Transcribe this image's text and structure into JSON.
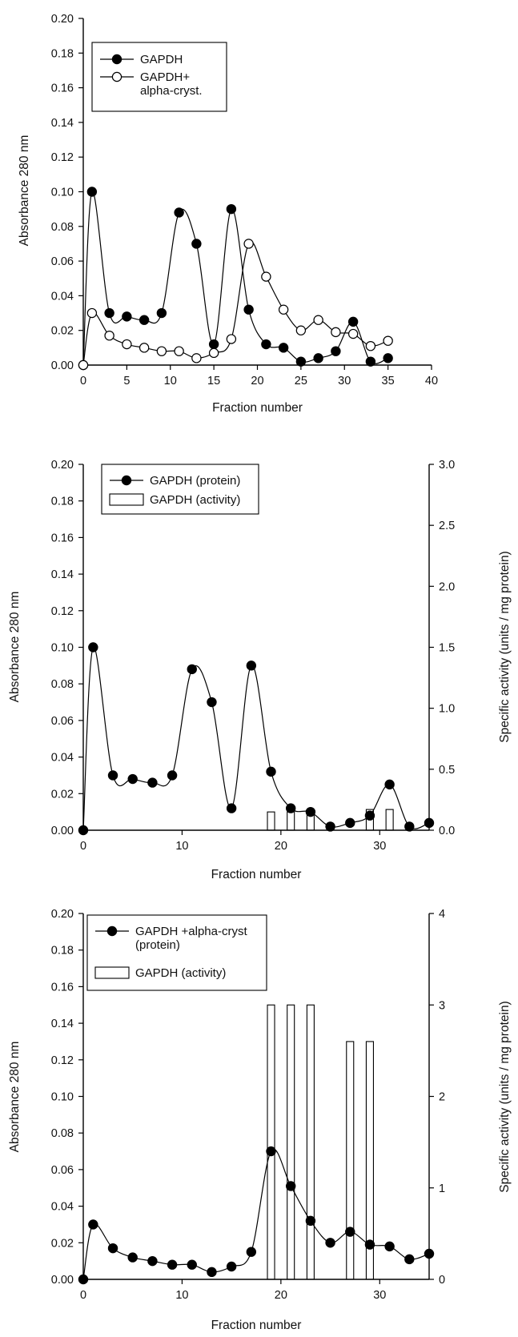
{
  "chart_data": [
    {
      "type": "line",
      "xlabel": "Fraction number",
      "ylabel": "Absorbance 280 nm",
      "xlim": [
        0,
        40
      ],
      "ylim": [
        0,
        0.2
      ],
      "x_ticks": [
        "0",
        "5",
        "10",
        "15",
        "20",
        "25",
        "30",
        "35",
        "40"
      ],
      "y_ticks": [
        "0.00",
        "0.02",
        "0.04",
        "0.06",
        "0.08",
        "0.10",
        "0.12",
        "0.14",
        "0.16",
        "0.18",
        "0.20"
      ],
      "grid": false,
      "legend_position": "top-left",
      "legend": [
        {
          "lines": [
            "GAPDH"
          ],
          "marker": "filled"
        },
        {
          "lines": [
            "GAPDH+",
            "alpha-cryst."
          ],
          "marker": "open"
        }
      ],
      "series": [
        {
          "name": "GAPDH",
          "marker": "filled",
          "x": [
            0,
            1,
            3,
            5,
            7,
            9,
            11,
            13,
            15,
            17,
            19,
            21,
            23,
            25,
            27,
            29,
            31,
            33,
            35
          ],
          "y": [
            0.0,
            0.1,
            0.03,
            0.028,
            0.026,
            0.03,
            0.088,
            0.07,
            0.012,
            0.09,
            0.032,
            0.012,
            0.01,
            0.002,
            0.004,
            0.008,
            0.025,
            0.002,
            0.004
          ]
        },
        {
          "name": "GAPDH+ alpha-cryst.",
          "marker": "open",
          "x": [
            0,
            1,
            3,
            5,
            7,
            9,
            11,
            13,
            15,
            17,
            19,
            21,
            23,
            25,
            27,
            29,
            31,
            33,
            35
          ],
          "y": [
            0.0,
            0.03,
            0.017,
            0.012,
            0.01,
            0.008,
            0.008,
            0.004,
            0.007,
            0.015,
            0.07,
            0.051,
            0.032,
            0.02,
            0.026,
            0.019,
            0.018,
            0.011,
            0.014
          ]
        }
      ]
    },
    {
      "type": "line",
      "xlabel": "Fraction number",
      "ylabel": "Absorbance 280 nm",
      "y2label": "Specific activity (units / mg protein)",
      "xlim": [
        0,
        35
      ],
      "ylim": [
        0,
        0.2
      ],
      "y2lim": [
        0,
        3.0
      ],
      "x_ticks": [
        "0",
        "10",
        "20",
        "30"
      ],
      "y_ticks": [
        "0.00",
        "0.02",
        "0.04",
        "0.06",
        "0.08",
        "0.10",
        "0.12",
        "0.14",
        "0.16",
        "0.18",
        "0.20"
      ],
      "y2_ticks": [
        "0.0",
        "0.5",
        "1.0",
        "1.5",
        "2.0",
        "2.5",
        "3.0"
      ],
      "grid": false,
      "legend_position": "top-left",
      "legend": [
        {
          "lines": [
            "GAPDH (protein)"
          ],
          "marker": "filled"
        },
        {
          "lines": [
            "GAPDH (activity)"
          ],
          "marker": "bar"
        }
      ],
      "series": [
        {
          "name": "GAPDH (protein)",
          "marker": "filled",
          "x": [
            0,
            1,
            3,
            5,
            7,
            9,
            11,
            13,
            15,
            17,
            19,
            21,
            23,
            25,
            27,
            29,
            31,
            33,
            35
          ],
          "y": [
            0.0,
            0.1,
            0.03,
            0.028,
            0.026,
            0.03,
            0.088,
            0.07,
            0.012,
            0.09,
            0.032,
            0.012,
            0.01,
            0.002,
            0.004,
            0.008,
            0.025,
            0.002,
            0.004
          ]
        }
      ],
      "bars": {
        "name": "GAPDH (activity)",
        "axis": "right",
        "x": [
          19,
          21,
          23,
          29,
          31
        ],
        "values": [
          0.15,
          0.15,
          0.15,
          0.17,
          0.17
        ]
      }
    },
    {
      "type": "line",
      "xlabel": "Fraction number",
      "ylabel": "Absorbance 280 nm",
      "y2label": "Specific activity (units / mg protein)",
      "xlim": [
        0,
        35
      ],
      "ylim": [
        0,
        0.2
      ],
      "y2lim": [
        0,
        4
      ],
      "x_ticks": [
        "0",
        "10",
        "20",
        "30"
      ],
      "y_ticks": [
        "0.00",
        "0.02",
        "0.04",
        "0.06",
        "0.08",
        "0.10",
        "0.12",
        "0.14",
        "0.16",
        "0.18",
        "0.20"
      ],
      "y2_ticks": [
        "0",
        "1",
        "2",
        "3",
        "4"
      ],
      "grid": false,
      "legend_position": "top-left",
      "legend": [
        {
          "lines": [
            "GAPDH +alpha-cryst",
            "(protein)"
          ],
          "marker": "filled"
        },
        {
          "lines": [
            "GAPDH (activity)"
          ],
          "marker": "bar"
        }
      ],
      "series": [
        {
          "name": "GAPDH +alpha-cryst (protein)",
          "marker": "filled",
          "x": [
            0,
            1,
            3,
            5,
            7,
            9,
            11,
            13,
            15,
            17,
            19,
            21,
            23,
            25,
            27,
            29,
            31,
            33,
            35
          ],
          "y": [
            0.0,
            0.03,
            0.017,
            0.012,
            0.01,
            0.008,
            0.008,
            0.004,
            0.007,
            0.015,
            0.07,
            0.051,
            0.032,
            0.02,
            0.026,
            0.019,
            0.018,
            0.011,
            0.014
          ]
        }
      ],
      "bars": {
        "name": "GAPDH (activity)",
        "axis": "right",
        "x": [
          19,
          21,
          23,
          27,
          29
        ],
        "values": [
          3.0,
          3.0,
          3.0,
          2.6,
          2.6
        ]
      }
    }
  ]
}
